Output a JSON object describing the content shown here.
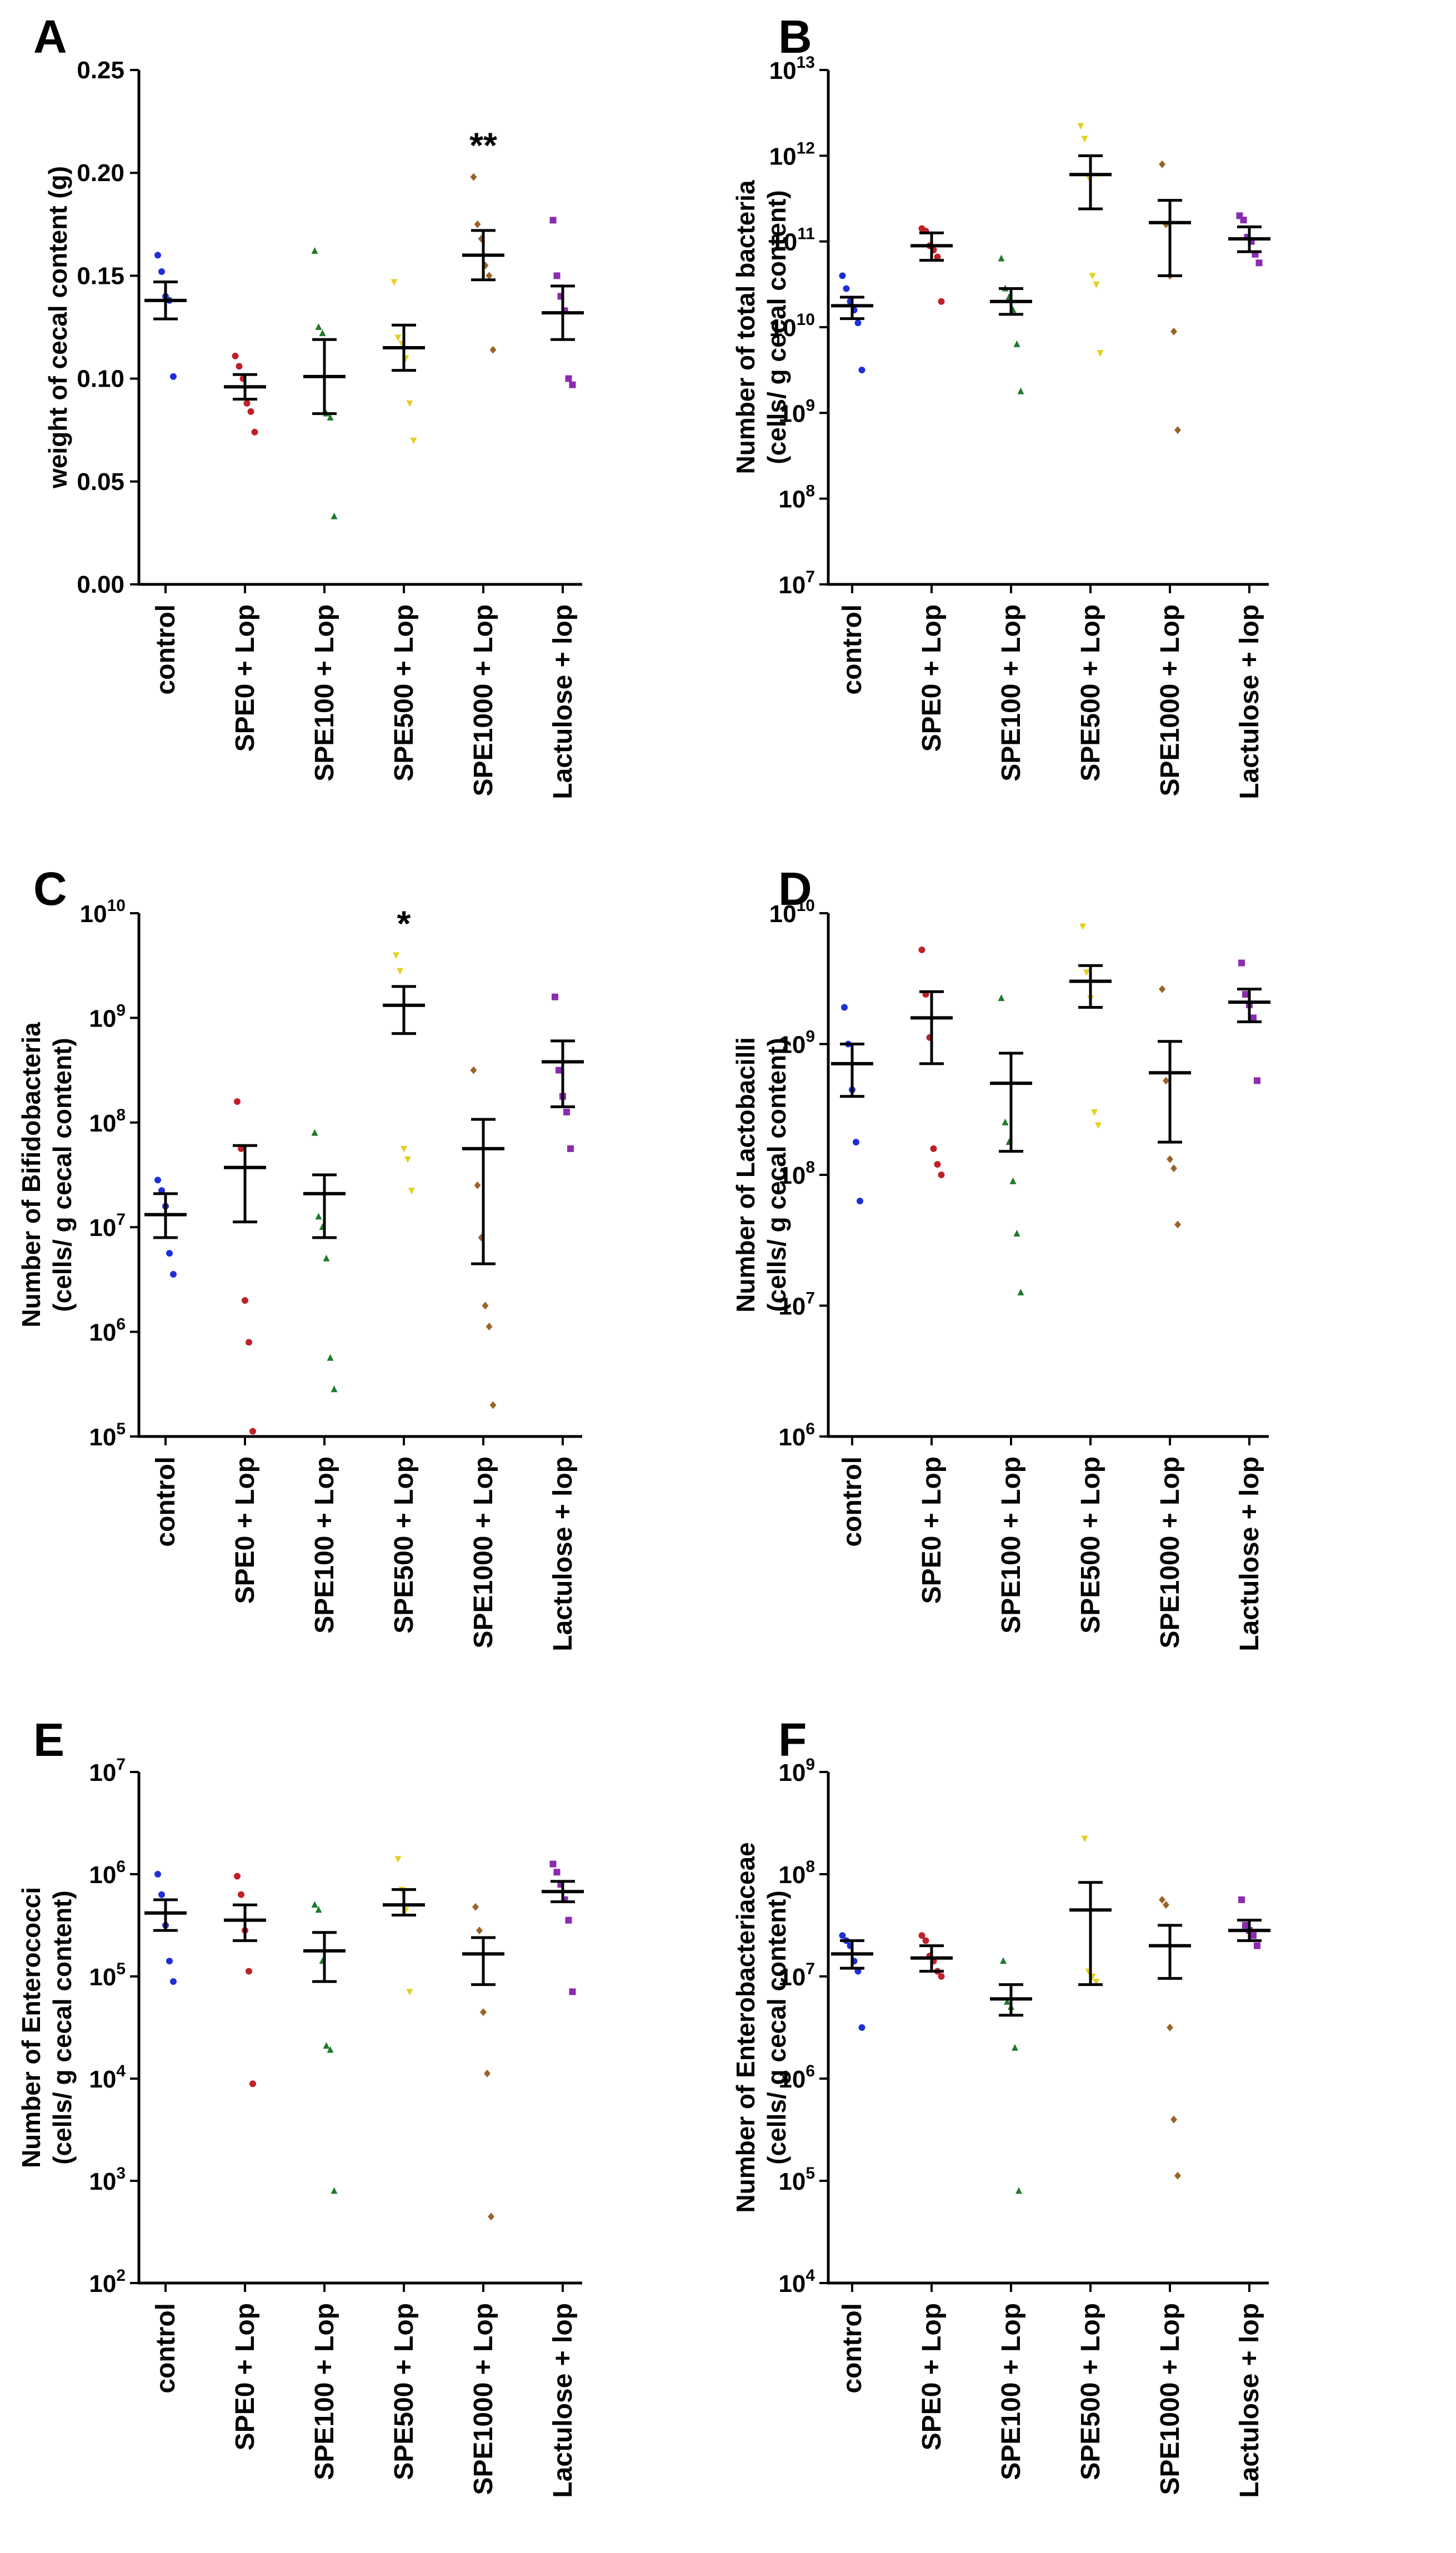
{
  "colors": {
    "control": "#1f2fd6",
    "SPE0": "#c0202a",
    "SPE100": "#1e7a2a",
    "SPE500": "#e3d022",
    "SPE1000": "#9a6328",
    "Lactulose": "#8a2bb0",
    "axis": "#000000"
  },
  "markers": [
    "circle",
    "circle",
    "triangle-up",
    "triangle-down",
    "diamond",
    "square"
  ],
  "chart_data": [
    {
      "panel": "A",
      "type": "scatter",
      "yscale": "linear",
      "ylim": [
        0,
        0.25
      ],
      "yticks": [
        "0.00",
        "0.05",
        "0.10",
        "0.15",
        "0.20",
        "0.25"
      ],
      "ylabel_lines": [
        "weight of cecal content (g)"
      ],
      "categories": [
        "control",
        "SPE0 + Lop",
        "SPE100 + Lop",
        "SPE500 + Lop",
        "SPE1000 + Lop",
        "Lactulose + lop"
      ],
      "points": [
        [
          0.16,
          0.152,
          0.14,
          0.138,
          0.101
        ],
        [
          0.111,
          0.106,
          0.1,
          0.088,
          0.084,
          0.074
        ],
        [
          0.162,
          0.125,
          0.122,
          0.083,
          0.081,
          0.033
        ],
        [
          0.147,
          0.12,
          0.117,
          0.11,
          0.088,
          0.07
        ],
        [
          0.198,
          0.175,
          0.168,
          0.155,
          0.15,
          0.114
        ],
        [
          0.177,
          0.15,
          0.14,
          0.133,
          0.1,
          0.097
        ]
      ],
      "mean": [
        0.138,
        0.096,
        0.101,
        0.115,
        0.16,
        0.132
      ],
      "sem": [
        0.009,
        0.006,
        0.018,
        0.011,
        0.012,
        0.013
      ],
      "annotations": [
        {
          "category": "SPE1000 + Lop",
          "text": "**"
        }
      ]
    },
    {
      "panel": "B",
      "type": "scatter",
      "yscale": "log",
      "ylim": [
        7,
        13
      ],
      "yticks": [
        "7",
        "8",
        "9",
        "10",
        "11",
        "12",
        "13"
      ],
      "ylabel_lines": [
        "Number of total bacteria",
        "(cells/ g cecal content)"
      ],
      "categories": [
        "control",
        "SPE0 + Lop",
        "SPE100 + Lop",
        "SPE500 + Lop",
        "SPE1000 + Lop",
        "Lactulose + lop"
      ],
      "points": [
        [
          10.6,
          10.45,
          10.3,
          10.2,
          10.05,
          9.5
        ],
        [
          11.15,
          11.12,
          10.95,
          10.9,
          10.82,
          10.3
        ],
        [
          10.8,
          10.45,
          10.35,
          10.2,
          9.8,
          9.25
        ],
        [
          12.35,
          12.2,
          11.75,
          10.6,
          10.5,
          9.7
        ],
        [
          11.9,
          11.2,
          10.6,
          9.95,
          8.8
        ],
        [
          11.3,
          11.25,
          11.05,
          11.0,
          10.85,
          10.75
        ]
      ],
      "mean": [
        10.25,
        10.95,
        10.3,
        11.78,
        11.22,
        11.03
      ],
      "err_hi": [
        10.35,
        11.1,
        10.45,
        12.0,
        11.48,
        11.17
      ],
      "err_lo": [
        10.1,
        10.78,
        10.15,
        11.38,
        10.6,
        10.88
      ],
      "annotations": []
    },
    {
      "panel": "C",
      "type": "scatter",
      "yscale": "log",
      "ylim": [
        5,
        10
      ],
      "yticks": [
        "5",
        "6",
        "7",
        "8",
        "9",
        "10"
      ],
      "ylabel_lines": [
        "Number of Bifidobacteria",
        "(cells/ g cecal content)"
      ],
      "categories": [
        "control",
        "SPE0 + Lop",
        "SPE100 + Lop",
        "SPE500 + Lop",
        "SPE1000 + Lop",
        "Lactulose + lop"
      ],
      "points": [
        [
          7.45,
          7.35,
          7.2,
          6.75,
          6.55
        ],
        [
          8.2,
          7.75,
          6.3,
          5.9,
          5.05
        ],
        [
          7.9,
          7.1,
          7.0,
          6.7,
          5.75,
          5.45
        ],
        [
          9.6,
          9.45,
          7.75,
          7.65,
          7.35
        ],
        [
          8.5,
          7.4,
          6.9,
          6.25,
          6.05,
          5.3
        ],
        [
          9.2,
          8.5,
          8.25,
          8.1,
          7.75
        ]
      ],
      "mean": [
        7.12,
        7.57,
        7.32,
        9.12,
        7.75,
        8.58
      ],
      "err_hi": [
        7.32,
        7.78,
        7.5,
        9.3,
        8.03,
        8.78
      ],
      "err_lo": [
        6.9,
        7.05,
        6.9,
        8.85,
        6.65,
        8.15
      ],
      "annotations": [
        {
          "category": "SPE500 + Lop",
          "text": "*"
        }
      ]
    },
    {
      "panel": "D",
      "type": "scatter",
      "yscale": "log",
      "ylim": [
        6,
        10
      ],
      "yticks": [
        "6",
        "7",
        "8",
        "9",
        "10"
      ],
      "ylabel_lines": [
        "Number of Lactobacilli",
        "(cells/ g cecal content)"
      ],
      "categories": [
        "control",
        "SPE0 + Lop",
        "SPE100 + Lop",
        "SPE500 + Lop",
        "SPE1000 + Lop",
        "Lactulose + lop"
      ],
      "points": [
        [
          9.28,
          9.0,
          8.65,
          8.25,
          7.8
        ],
        [
          9.72,
          9.38,
          9.05,
          8.2,
          8.08,
          8.0
        ],
        [
          9.35,
          8.4,
          8.25,
          7.95,
          7.55,
          7.1
        ],
        [
          9.9,
          9.55,
          9.35,
          8.48,
          8.38
        ],
        [
          9.42,
          8.72,
          8.12,
          8.05,
          7.62
        ],
        [
          9.62,
          9.38,
          9.3,
          9.2,
          8.72
        ]
      ],
      "mean": [
        8.85,
        9.2,
        8.7,
        9.48,
        8.78,
        9.32
      ],
      "err_hi": [
        9.0,
        9.4,
        8.93,
        9.6,
        9.02,
        9.42
      ],
      "err_lo": [
        8.6,
        8.85,
        8.18,
        9.28,
        8.25,
        9.17
      ],
      "annotations": []
    },
    {
      "panel": "E",
      "type": "scatter",
      "yscale": "log",
      "ylim": [
        2,
        7
      ],
      "yticks": [
        "2",
        "3",
        "4",
        "5",
        "6",
        "7"
      ],
      "ylabel_lines": [
        "Number of Enterococci",
        "(cells/ g cecal content)"
      ],
      "categories": [
        "control",
        "SPE0 + Lop",
        "SPE100 + Lop",
        "SPE500 + Lop",
        "SPE1000 + Lop",
        "Lactulose + lop"
      ],
      "points": [
        [
          6.0,
          5.8,
          5.5,
          5.15,
          4.95
        ],
        [
          5.98,
          5.8,
          5.45,
          5.05,
          3.95
        ],
        [
          5.7,
          5.65,
          5.15,
          4.32,
          4.28,
          2.9
        ],
        [
          6.15,
          5.85,
          5.65,
          4.85
        ],
        [
          5.68,
          5.45,
          4.65,
          4.05,
          2.65
        ],
        [
          6.1,
          6.02,
          5.9,
          5.75,
          5.55,
          4.85
        ]
      ],
      "mean": [
        5.62,
        5.55,
        5.25,
        5.7,
        5.22,
        5.83
      ],
      "err_hi": [
        5.75,
        5.7,
        5.43,
        5.85,
        5.38,
        5.93
      ],
      "err_lo": [
        5.45,
        5.35,
        4.95,
        5.6,
        4.92,
        5.73
      ],
      "annotations": []
    },
    {
      "panel": "F",
      "type": "scatter",
      "yscale": "log",
      "ylim": [
        4,
        9
      ],
      "yticks": [
        "4",
        "5",
        "6",
        "7",
        "8",
        "9"
      ],
      "ylabel_lines": [
        "Number of Enterobacteriaceae",
        "(cells/ g cecal content)"
      ],
      "categories": [
        "control",
        "SPE0 + Lop",
        "SPE100 + Lop",
        "SPE500 + Lop",
        "SPE1000 + Lop",
        "Lactulose + lop"
      ],
      "points": [
        [
          7.4,
          7.35,
          7.3,
          7.15,
          7.05,
          6.5
        ],
        [
          7.4,
          7.35,
          7.2,
          7.15,
          7.05,
          7.0
        ],
        [
          7.15,
          6.75,
          6.7,
          6.3,
          4.9
        ],
        [
          8.35,
          7.05,
          7.0,
          6.95
        ],
        [
          7.75,
          7.7,
          6.5,
          5.6,
          5.05
        ],
        [
          7.75,
          7.5,
          7.45,
          7.4,
          7.3
        ]
      ],
      "mean": [
        7.22,
        7.18,
        6.78,
        7.65,
        7.3,
        7.45
      ],
      "err_hi": [
        7.35,
        7.3,
        6.92,
        7.92,
        7.5,
        7.55
      ],
      "err_lo": [
        7.08,
        7.05,
        6.62,
        6.92,
        6.98,
        7.35
      ],
      "annotations": []
    }
  ]
}
